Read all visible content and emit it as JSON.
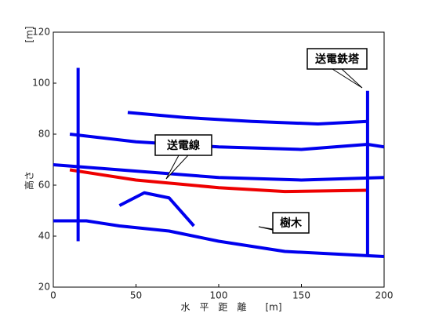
{
  "chart_data": {
    "type": "line",
    "x_label": "水　平　距　離　　[m]",
    "y_label": "高さ",
    "y_unit": "[m]",
    "xlim": [
      0,
      200
    ],
    "xticks": [
      0,
      50,
      100,
      150,
      200
    ],
    "ylim": [
      20,
      120
    ],
    "yticks": [
      20,
      40,
      60,
      80,
      100,
      120
    ],
    "annotations": [
      "送電鉄塔",
      "送電線",
      "樹木"
    ],
    "series": [
      {
        "color": "#0000ee",
        "x": [
          45,
          80,
          120,
          160,
          190
        ],
        "values": [
          88.5,
          86.5,
          85,
          84,
          85
        ]
      },
      {
        "color": "#0000ee",
        "x": [
          10,
          50,
          100,
          150,
          190,
          200
        ],
        "values": [
          80,
          77,
          75,
          74,
          76,
          75
        ]
      },
      {
        "color": "#0000ee",
        "x": [
          0,
          40,
          100,
          150,
          200
        ],
        "values": [
          68,
          66,
          63,
          62,
          63
        ]
      },
      {
        "color": "#ee0000",
        "x": [
          10,
          50,
          100,
          140,
          190
        ],
        "values": [
          66,
          62,
          59,
          57.5,
          58
        ]
      },
      {
        "color": "#0000ee",
        "x": [
          0,
          20,
          40,
          70,
          100,
          140,
          200
        ],
        "values": [
          46,
          46,
          44,
          42,
          38,
          34,
          32
        ]
      },
      {
        "color": "#0000ee",
        "x": [
          190,
          190
        ],
        "values": [
          32,
          97
        ]
      },
      {
        "color": "#0000ee",
        "x": [
          15,
          15
        ],
        "values": [
          38,
          106
        ]
      },
      {
        "color": "#0000ee",
        "x": [
          40,
          55,
          70,
          85
        ],
        "values": [
          52,
          57,
          55,
          44
        ]
      }
    ]
  }
}
